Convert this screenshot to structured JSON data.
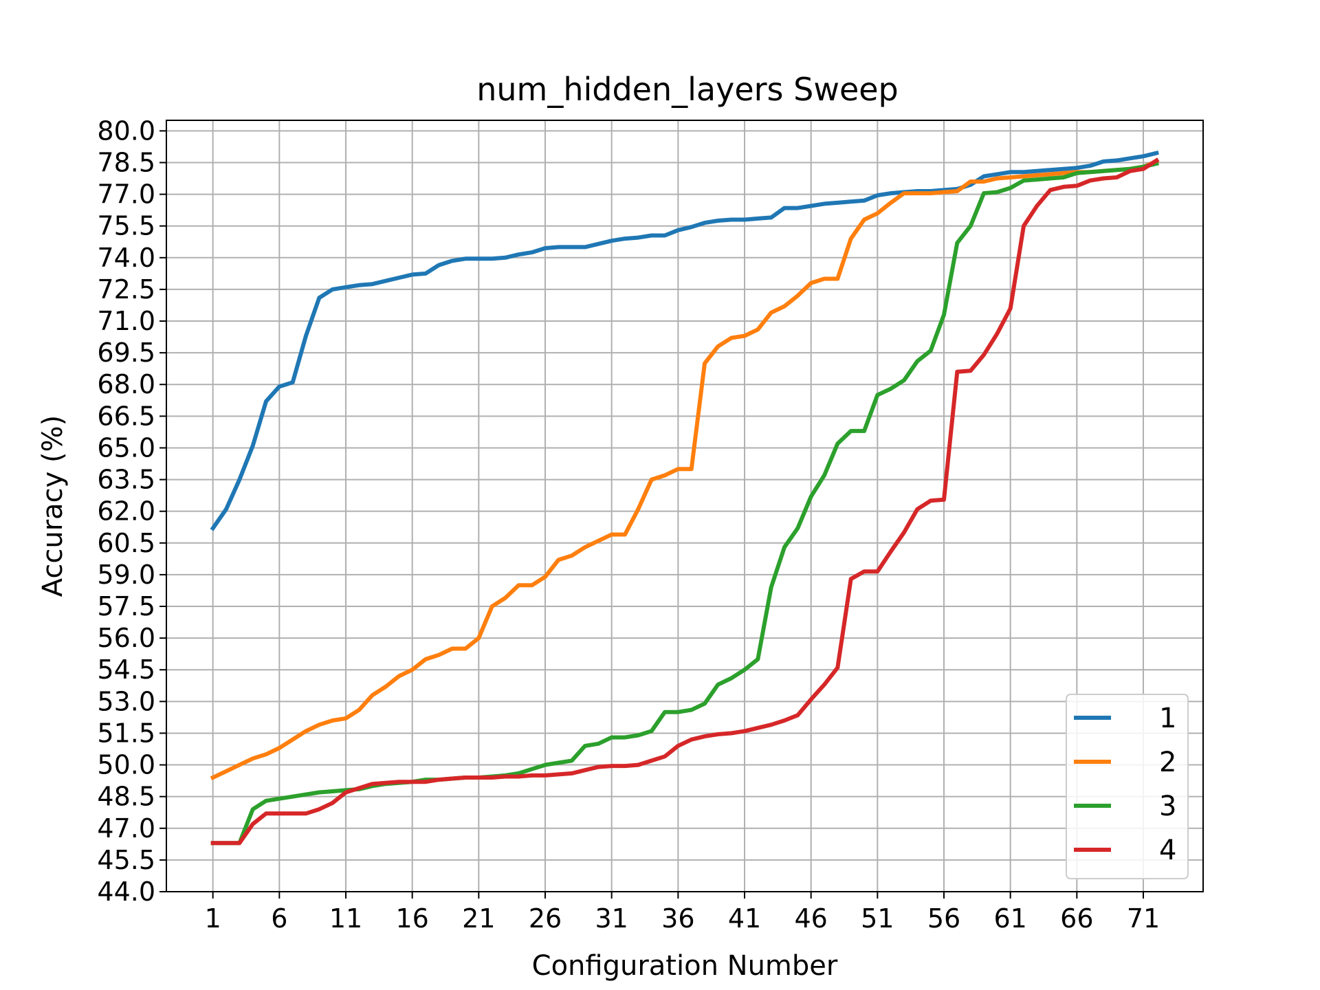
{
  "chart_data": {
    "type": "line",
    "title": "num_hidden_layers Sweep",
    "xlabel": "Configuration Number",
    "ylabel": "Accuracy (%)",
    "xlim": [
      -2.5,
      75.5
    ],
    "ylim": [
      44.0,
      80.5
    ],
    "xticks": [
      "1",
      "6",
      "11",
      "16",
      "21",
      "26",
      "31",
      "36",
      "41",
      "46",
      "51",
      "56",
      "61",
      "66",
      "71"
    ],
    "yticks": [
      "44.0",
      "45.5",
      "47.0",
      "48.5",
      "50.0",
      "51.5",
      "53.0",
      "54.5",
      "56.0",
      "57.5",
      "59.0",
      "60.5",
      "62.0",
      "63.5",
      "65.0",
      "66.5",
      "68.0",
      "69.5",
      "71.0",
      "72.5",
      "74.0",
      "75.5",
      "77.0",
      "78.5",
      "80.0"
    ],
    "grid": true,
    "legend_position": "bottom-right",
    "series": [
      {
        "name": "1",
        "color": "#1f77b4",
        "values": [
          61.2,
          62.1,
          63.5,
          65.1,
          67.2,
          67.9,
          68.1,
          70.3,
          72.1,
          72.5,
          72.6,
          72.7,
          72.75,
          72.9,
          73.05,
          73.2,
          73.25,
          73.65,
          73.85,
          73.95,
          73.95,
          73.95,
          74.0,
          74.15,
          74.25,
          74.45,
          74.5,
          74.5,
          74.5,
          74.65,
          74.8,
          74.9,
          74.95,
          75.05,
          75.05,
          75.3,
          75.45,
          75.65,
          75.75,
          75.8,
          75.8,
          75.85,
          75.9,
          76.35,
          76.35,
          76.45,
          76.55,
          76.6,
          76.65,
          76.7,
          76.95,
          77.05,
          77.1,
          77.15,
          77.15,
          77.2,
          77.25,
          77.45,
          77.85,
          77.95,
          78.05,
          78.05,
          78.1,
          78.15,
          78.2,
          78.25,
          78.35,
          78.55,
          78.6,
          78.7,
          78.8,
          78.95
        ]
      },
      {
        "name": "2",
        "color": "#ff7f0e",
        "values": [
          49.4,
          49.7,
          50.0,
          50.3,
          50.5,
          50.8,
          51.2,
          51.6,
          51.9,
          52.1,
          52.2,
          52.6,
          53.3,
          53.7,
          54.2,
          54.5,
          55.0,
          55.2,
          55.5,
          55.5,
          56.0,
          57.5,
          57.9,
          58.5,
          58.5,
          58.9,
          59.7,
          59.9,
          60.3,
          60.6,
          60.9,
          60.9,
          62.1,
          63.5,
          63.7,
          64.0,
          64.0,
          69.0,
          69.8,
          70.2,
          70.3,
          70.6,
          71.4,
          71.7,
          72.2,
          72.8,
          73.0,
          73.0,
          74.9,
          75.8,
          76.1,
          76.6,
          77.05,
          77.05,
          77.05,
          77.1,
          77.15,
          77.6,
          77.6,
          77.75,
          77.8,
          77.85,
          77.9,
          77.95,
          78.0,
          78.05,
          78.05,
          78.1,
          78.15,
          78.2,
          78.3,
          78.55
        ]
      },
      {
        "name": "3",
        "color": "#2ca02c",
        "values": [
          46.3,
          46.3,
          46.3,
          47.9,
          48.3,
          48.4,
          48.5,
          48.6,
          48.7,
          48.75,
          48.8,
          48.85,
          49.0,
          49.1,
          49.15,
          49.2,
          49.3,
          49.3,
          49.35,
          49.4,
          49.4,
          49.45,
          49.5,
          49.6,
          49.8,
          50.0,
          50.1,
          50.2,
          50.9,
          51.0,
          51.3,
          51.3,
          51.4,
          51.6,
          52.5,
          52.5,
          52.6,
          52.9,
          53.8,
          54.1,
          54.5,
          55.0,
          58.4,
          60.3,
          61.2,
          62.7,
          63.7,
          65.2,
          65.8,
          65.8,
          67.5,
          67.8,
          68.2,
          69.1,
          69.6,
          71.3,
          74.7,
          75.5,
          77.05,
          77.1,
          77.3,
          77.65,
          77.7,
          77.75,
          77.8,
          78.0,
          78.05,
          78.1,
          78.15,
          78.2,
          78.3,
          78.45
        ]
      },
      {
        "name": "4",
        "color": "#d62728",
        "values": [
          46.3,
          46.3,
          46.3,
          47.2,
          47.7,
          47.7,
          47.7,
          47.7,
          47.9,
          48.2,
          48.7,
          48.9,
          49.1,
          49.15,
          49.2,
          49.2,
          49.2,
          49.3,
          49.35,
          49.4,
          49.4,
          49.4,
          49.45,
          49.45,
          49.5,
          49.5,
          49.55,
          49.6,
          49.75,
          49.9,
          49.95,
          49.95,
          50.0,
          50.2,
          50.4,
          50.9,
          51.2,
          51.35,
          51.45,
          51.5,
          51.6,
          51.75,
          51.9,
          52.1,
          52.35,
          53.1,
          53.8,
          54.6,
          58.8,
          59.15,
          59.15,
          60.1,
          61.0,
          62.1,
          62.5,
          62.55,
          68.6,
          68.65,
          69.4,
          70.4,
          71.6,
          75.5,
          76.45,
          77.2,
          77.35,
          77.4,
          77.65,
          77.75,
          77.8,
          78.1,
          78.2,
          78.6
        ]
      }
    ]
  }
}
